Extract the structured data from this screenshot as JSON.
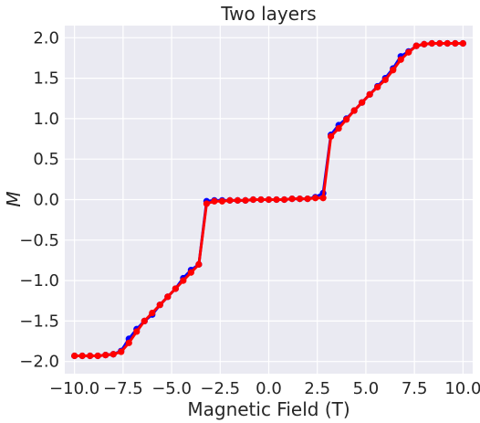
{
  "chart_data": {
    "type": "line",
    "title": "Two layers",
    "xlabel": "Magnetic Field (T)",
    "ylabel": "M",
    "xlim": [
      -10.5,
      10.5
    ],
    "ylim": [
      -2.15,
      2.15
    ],
    "xticks": [
      -10.0,
      -7.5,
      -5.0,
      -2.5,
      0.0,
      2.5,
      5.0,
      7.5,
      10.0
    ],
    "xtick_labels": [
      "−10.0",
      "−7.5",
      "−5.0",
      "−2.5",
      "0.0",
      "2.5",
      "5.0",
      "7.5",
      "10.0"
    ],
    "yticks": [
      -2.0,
      -1.5,
      -1.0,
      -0.5,
      0.0,
      0.5,
      1.0,
      1.5,
      2.0
    ],
    "ytick_labels": [
      "−2.0",
      "−1.5",
      "−1.0",
      "−0.5",
      "0.0",
      "0.5",
      "1.0",
      "1.5",
      "2.0"
    ],
    "grid": true,
    "background": "#eaeaf2",
    "series": [
      {
        "color": "#0000ff",
        "x": [
          -10.0,
          -9.6,
          -9.2,
          -8.8,
          -8.4,
          -8.0,
          -7.6,
          -7.2,
          -6.8,
          -6.4,
          -6.0,
          -5.6,
          -5.2,
          -4.8,
          -4.4,
          -4.0,
          -3.6,
          -3.2,
          -2.8,
          -2.4,
          -2.0,
          -1.6,
          -1.2,
          -0.8,
          -0.4,
          0.0,
          0.4,
          0.8,
          1.2,
          1.6,
          2.0,
          2.4,
          2.8,
          3.2,
          3.6,
          4.0,
          4.4,
          4.8,
          5.2,
          5.6,
          6.0,
          6.4,
          6.8,
          7.2,
          7.6,
          8.0,
          8.4,
          8.8,
          9.2,
          9.6,
          10.0
        ],
        "y": [
          -1.93,
          -1.93,
          -1.93,
          -1.93,
          -1.92,
          -1.91,
          -1.87,
          -1.72,
          -1.6,
          -1.5,
          -1.42,
          -1.3,
          -1.2,
          -1.1,
          -0.97,
          -0.87,
          -0.8,
          -0.02,
          -0.01,
          -0.01,
          -0.01,
          -0.01,
          -0.01,
          0.0,
          0.0,
          0.0,
          0.0,
          0.0,
          0.01,
          0.01,
          0.01,
          0.03,
          0.08,
          0.8,
          0.92,
          1.0,
          1.1,
          1.2,
          1.3,
          1.4,
          1.5,
          1.62,
          1.77,
          1.83,
          1.9,
          1.92,
          1.93,
          1.93,
          1.93,
          1.93,
          1.93
        ]
      },
      {
        "color": "#ff0000",
        "x": [
          -10.0,
          -9.6,
          -9.2,
          -8.8,
          -8.4,
          -8.0,
          -7.6,
          -7.2,
          -6.8,
          -6.4,
          -6.0,
          -5.6,
          -5.2,
          -4.8,
          -4.4,
          -4.0,
          -3.6,
          -3.2,
          -2.8,
          -2.4,
          -2.0,
          -1.6,
          -1.2,
          -0.8,
          -0.4,
          0.0,
          0.4,
          0.8,
          1.2,
          1.6,
          2.0,
          2.4,
          2.8,
          3.2,
          3.6,
          4.0,
          4.4,
          4.8,
          5.2,
          5.6,
          6.0,
          6.4,
          6.8,
          7.2,
          7.6,
          8.0,
          8.4,
          8.8,
          9.2,
          9.6,
          10.0
        ],
        "y": [
          -1.93,
          -1.93,
          -1.93,
          -1.93,
          -1.92,
          -1.91,
          -1.88,
          -1.77,
          -1.63,
          -1.5,
          -1.4,
          -1.3,
          -1.2,
          -1.1,
          -1.0,
          -0.9,
          -0.8,
          -0.05,
          -0.02,
          -0.02,
          -0.01,
          -0.01,
          -0.01,
          0.0,
          0.0,
          0.0,
          0.0,
          0.0,
          0.01,
          0.01,
          0.01,
          0.02,
          0.02,
          0.78,
          0.88,
          0.99,
          1.1,
          1.2,
          1.3,
          1.39,
          1.48,
          1.6,
          1.73,
          1.82,
          1.9,
          1.92,
          1.93,
          1.93,
          1.93,
          1.93,
          1.93
        ]
      }
    ]
  }
}
